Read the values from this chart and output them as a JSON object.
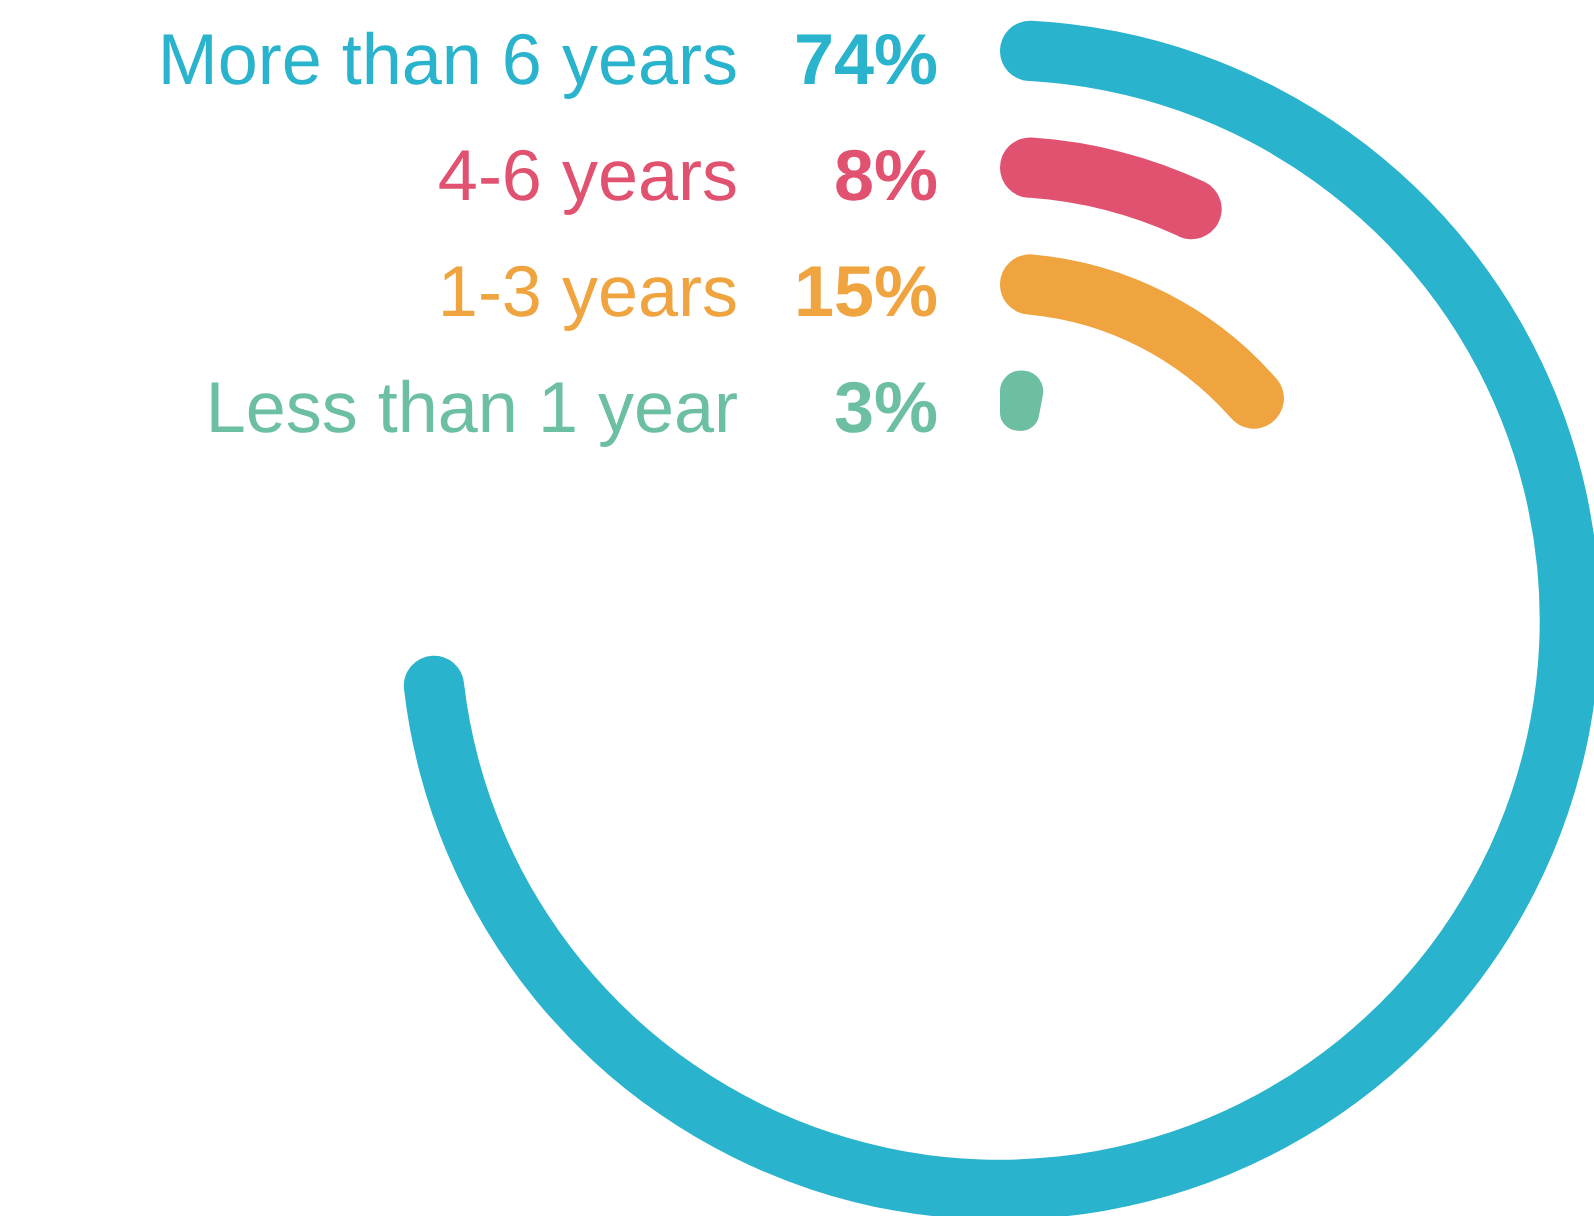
{
  "chart_data": {
    "type": "other",
    "categories": [
      "More than 6 years",
      "4-6 years",
      "1-3 years",
      "Less than 1 year"
    ],
    "values": [
      74,
      8,
      15,
      3
    ],
    "colors": [
      "#2ab3cc",
      "#e0526f",
      "#efa43f",
      "#6dbfa2"
    ],
    "value_labels": [
      "74%",
      "8%",
      "15%",
      "3%"
    ]
  }
}
